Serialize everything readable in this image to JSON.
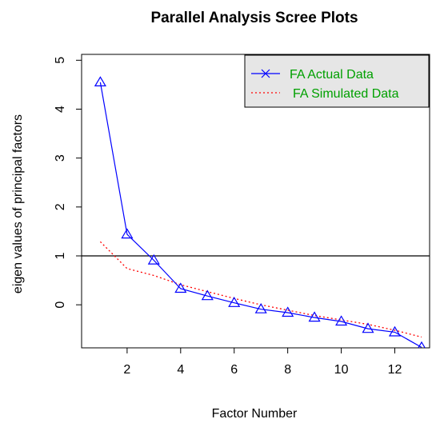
{
  "chart_data": {
    "type": "line",
    "title": "Parallel Analysis Scree Plots",
    "xlabel": "Factor Number",
    "ylabel": "eigen values of principal factors",
    "x": [
      1,
      2,
      3,
      4,
      5,
      6,
      7,
      8,
      9,
      10,
      11,
      12,
      13
    ],
    "xlim": [
      0.3,
      13.3
    ],
    "ylim": [
      -0.88,
      5.12
    ],
    "xticks": [
      2,
      4,
      6,
      8,
      10,
      12
    ],
    "yticks": [
      0,
      1,
      2,
      3,
      4,
      5
    ],
    "reference_line": 1,
    "grid": false,
    "legend_placement": "top-right",
    "series": [
      {
        "name": "FA  Actual Data",
        "color": "#0000ff",
        "line_style": "solid",
        "marker": "triangle",
        "values": [
          4.55,
          1.44,
          0.91,
          0.33,
          0.18,
          0.04,
          -0.09,
          -0.16,
          -0.26,
          -0.34,
          -0.49,
          -0.56,
          -0.87
        ]
      },
      {
        "name": "FA  Simulated Data",
        "color": "#ff0000",
        "line_style": "dotted",
        "values": [
          1.29,
          0.74,
          0.6,
          0.41,
          0.27,
          0.13,
          0.0,
          -0.11,
          -0.22,
          -0.31,
          -0.4,
          -0.52,
          -0.66
        ]
      }
    ],
    "legend_text_color": "#00a000",
    "legend_background": "#e6e6e6"
  }
}
